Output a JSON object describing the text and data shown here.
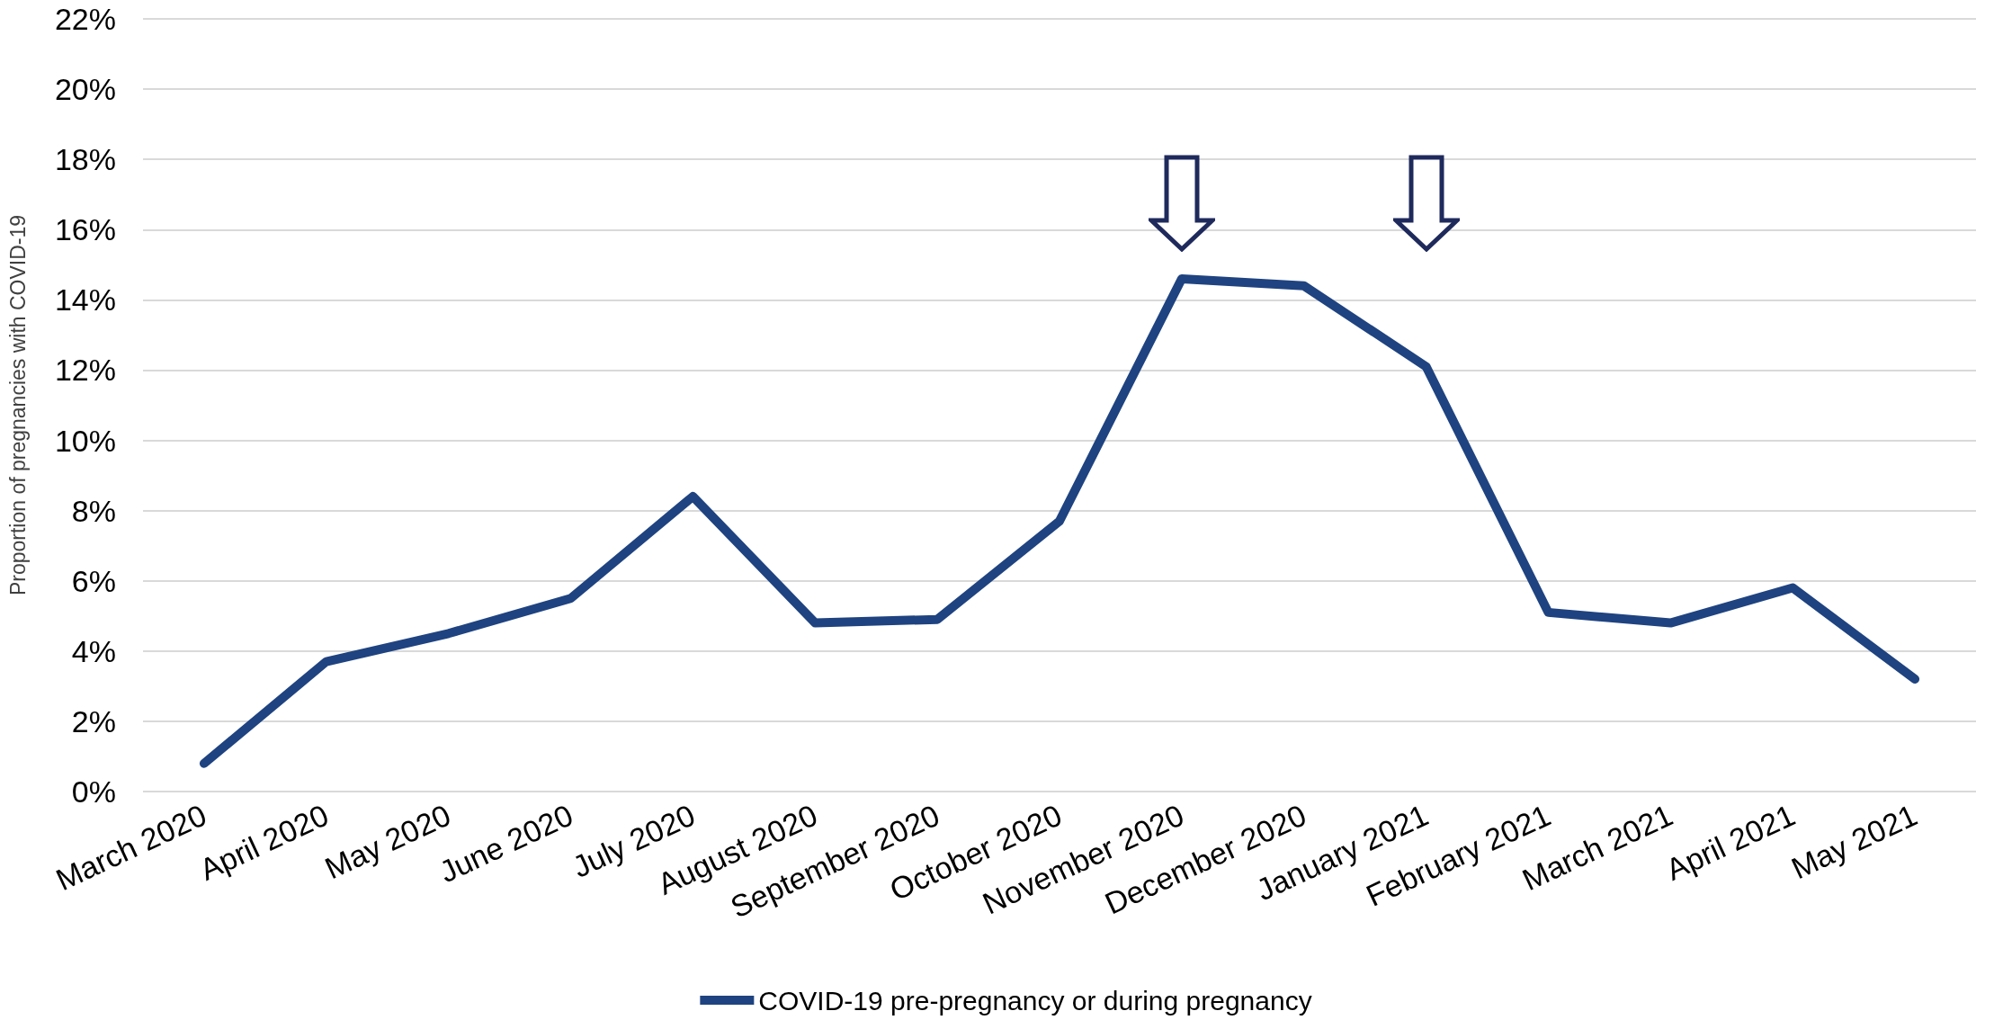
{
  "chart_data": {
    "type": "line",
    "ylabel": "Proportion of pregnancies with COVID-19",
    "categories": [
      "March 2020",
      "April 2020",
      "May 2020",
      "June 2020",
      "July 2020",
      "August 2020",
      "September 2020",
      "October 2020",
      "November 2020",
      "December 2020",
      "January 2021",
      "February 2021",
      "March 2021",
      "April 2021",
      "May 2021"
    ],
    "series": [
      {
        "name": "COVID-19 pre-pregnancy or during pregnancy",
        "color": "#1f4380",
        "values": [
          0.8,
          3.7,
          4.5,
          5.5,
          8.4,
          4.8,
          4.9,
          7.7,
          14.6,
          14.4,
          12.1,
          5.1,
          4.8,
          5.8,
          3.2
        ]
      }
    ],
    "ylim": [
      0,
      22
    ],
    "yticks": [
      {
        "value": 0,
        "label": "0%"
      },
      {
        "value": 2,
        "label": "2%"
      },
      {
        "value": 4,
        "label": "4%"
      },
      {
        "value": 6,
        "label": "6%"
      },
      {
        "value": 8,
        "label": "8%"
      },
      {
        "value": 10,
        "label": "10%"
      },
      {
        "value": 12,
        "label": "12%"
      },
      {
        "value": 14,
        "label": "14%"
      },
      {
        "value": 16,
        "label": "16%"
      },
      {
        "value": 18,
        "label": "18%"
      },
      {
        "value": 20,
        "label": "20%"
      },
      {
        "value": 22,
        "label": "22%"
      }
    ],
    "grid": "y",
    "legend": "bottom",
    "marker": "none",
    "line_style": "solid"
  }
}
